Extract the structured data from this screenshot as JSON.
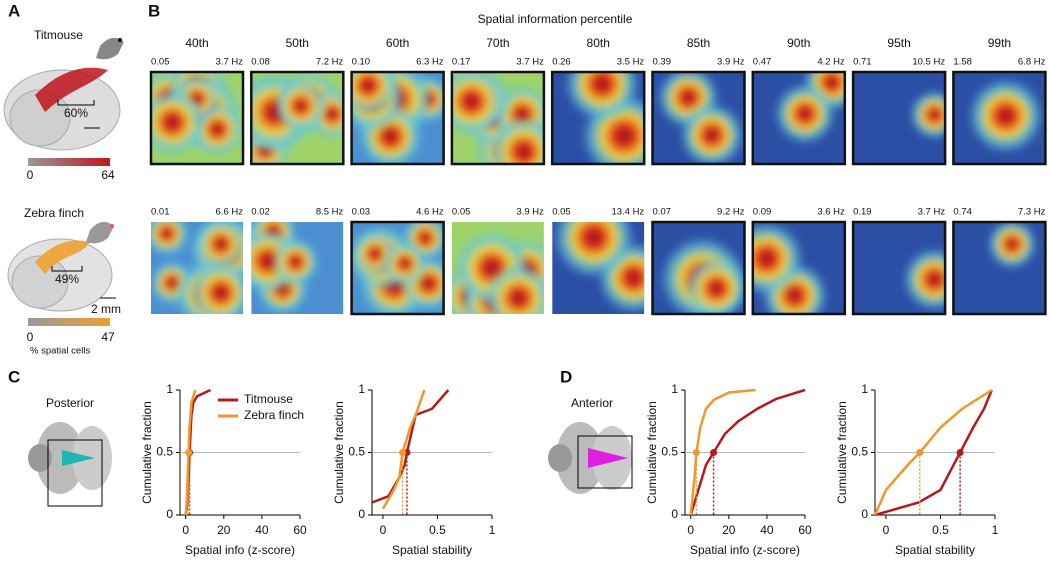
{
  "panel_a": {
    "label": "A",
    "species": [
      {
        "name": "Titmouse",
        "fraction": "60%",
        "scale_min": "0",
        "scale_max": "64",
        "color": "#c0141c"
      },
      {
        "name": "Zebra finch",
        "fraction": "49%",
        "scale_bar": "2 mm",
        "scale_min": "0",
        "scale_max": "47",
        "scale_title": "% spatial cells",
        "color": "#f0a030"
      }
    ]
  },
  "panel_b": {
    "label": "B",
    "title": "Spatial information percentile",
    "percentiles": [
      "40th",
      "50th",
      "60th",
      "70th",
      "80th",
      "85th",
      "90th",
      "95th",
      "99th"
    ],
    "rows": [
      [
        {
          "info": "0.05",
          "peak": "3.7 Hz",
          "framed": true
        },
        {
          "info": "0.08",
          "peak": "7.2 Hz",
          "framed": true
        },
        {
          "info": "0.10",
          "peak": "6.3 Hz",
          "framed": true
        },
        {
          "info": "0.17",
          "peak": "3.7 Hz",
          "framed": true
        },
        {
          "info": "0.26",
          "peak": "3.5 Hz",
          "framed": true
        },
        {
          "info": "0.39",
          "peak": "3.9 Hz",
          "framed": true
        },
        {
          "info": "0.47",
          "peak": "4.2 Hz",
          "framed": true
        },
        {
          "info": "0.71",
          "peak": "10.5 Hz",
          "framed": true
        },
        {
          "info": "1.58",
          "peak": "6.8 Hz",
          "framed": true
        }
      ],
      [
        {
          "info": "0.01",
          "peak": "6.6 Hz",
          "framed": false
        },
        {
          "info": "0.02",
          "peak": "8.5 Hz",
          "framed": false
        },
        {
          "info": "0.03",
          "peak": "4.6 Hz",
          "framed": true
        },
        {
          "info": "0.05",
          "peak": "3.9 Hz",
          "framed": false
        },
        {
          "info": "0.05",
          "peak": "13.4 Hz",
          "framed": false
        },
        {
          "info": "0.07",
          "peak": "9.2 Hz",
          "framed": true
        },
        {
          "info": "0.09",
          "peak": "3.6 Hz",
          "framed": true
        },
        {
          "info": "0.19",
          "peak": "3.7 Hz",
          "framed": true
        },
        {
          "info": "0.74",
          "peak": "7.3 Hz",
          "framed": true
        }
      ]
    ]
  },
  "panel_c": {
    "label": "C",
    "region": "Posterior",
    "charts": [
      {
        "type": "line",
        "xlabel": "Spatial info (z-score)",
        "ylabel": "Cumulative fraction",
        "xlim": [
          -3,
          60
        ],
        "xticks": [
          0,
          20,
          40,
          60
        ],
        "ylim": [
          0,
          1
        ],
        "yticks": [
          0,
          0.5,
          1
        ],
        "reference_line": 0.5,
        "legend": true,
        "series": [
          {
            "name": "Titmouse",
            "color": "#b31b1b",
            "x": [
              0,
              1,
              2,
              3,
              4,
              6,
              13
            ],
            "values": [
              0,
              0.1,
              0.5,
              0.8,
              0.9,
              0.95,
              1
            ],
            "median": 2
          },
          {
            "name": "Zebra finch",
            "color": "#f0982a",
            "x": [
              0,
              0.5,
              1.5,
              2,
              3,
              5
            ],
            "values": [
              0,
              0.1,
              0.5,
              0.7,
              0.9,
              1
            ],
            "median": 1.5
          }
        ]
      },
      {
        "type": "line",
        "xlabel": "Spatial stability",
        "ylabel": "Cumulative fraction",
        "xlim": [
          -0.1,
          1
        ],
        "xticks": [
          0,
          0.5,
          1
        ],
        "ylim": [
          0,
          1
        ],
        "yticks": [
          0,
          0.5,
          1
        ],
        "reference_line": 0.5,
        "legend": false,
        "series": [
          {
            "color": "#b31b1b",
            "x": [
              -0.1,
              0.05,
              0.15,
              0.2,
              0.22,
              0.3,
              0.45,
              0.6
            ],
            "values": [
              0.1,
              0.15,
              0.3,
              0.4,
              0.5,
              0.8,
              0.85,
              1
            ],
            "median": 0.22
          },
          {
            "color": "#f0982a",
            "x": [
              0,
              0.1,
              0.15,
              0.18,
              0.25,
              0.3,
              0.38
            ],
            "values": [
              0.05,
              0.2,
              0.3,
              0.5,
              0.7,
              0.8,
              1
            ],
            "median": 0.18
          }
        ]
      }
    ]
  },
  "panel_d": {
    "label": "D",
    "region": "Anterior",
    "charts": [
      {
        "type": "line",
        "xlabel": "Spatial info (z-score)",
        "ylabel": "Cumulative fraction",
        "xlim": [
          -3,
          60
        ],
        "xticks": [
          0,
          20,
          40,
          60
        ],
        "ylim": [
          0,
          1
        ],
        "yticks": [
          0,
          0.5,
          1
        ],
        "reference_line": 0.5,
        "legend": false,
        "series": [
          {
            "color": "#b31b1b",
            "x": [
              0,
              2,
              5,
              8,
              12,
              18,
              25,
              35,
              45,
              60
            ],
            "values": [
              0,
              0.1,
              0.25,
              0.4,
              0.5,
              0.65,
              0.75,
              0.85,
              0.93,
              1
            ],
            "median": 12
          },
          {
            "color": "#f0982a",
            "x": [
              0,
              1,
              2,
              3,
              5,
              8,
              12,
              20,
              34
            ],
            "values": [
              0,
              0.15,
              0.3,
              0.5,
              0.7,
              0.85,
              0.92,
              0.98,
              1
            ],
            "median": 3
          }
        ]
      },
      {
        "type": "line",
        "xlabel": "Spatial stability",
        "ylabel": "Cumulative fraction",
        "xlim": [
          -0.1,
          1
        ],
        "xticks": [
          0,
          0.5,
          1
        ],
        "ylim": [
          0,
          1
        ],
        "yticks": [
          0,
          0.5,
          1
        ],
        "reference_line": 0.5,
        "legend": false,
        "series": [
          {
            "color": "#b31b1b",
            "x": [
              -0.1,
              0.1,
              0.3,
              0.5,
              0.68,
              0.8,
              0.9,
              0.97
            ],
            "values": [
              0,
              0.05,
              0.1,
              0.2,
              0.5,
              0.7,
              0.85,
              1
            ],
            "median": 0.68
          },
          {
            "color": "#f0982a",
            "x": [
              -0.1,
              0,
              0.1,
              0.2,
              0.31,
              0.5,
              0.7,
              0.97
            ],
            "values": [
              0,
              0.2,
              0.3,
              0.4,
              0.5,
              0.7,
              0.85,
              1
            ],
            "median": 0.31
          }
        ]
      }
    ]
  }
}
